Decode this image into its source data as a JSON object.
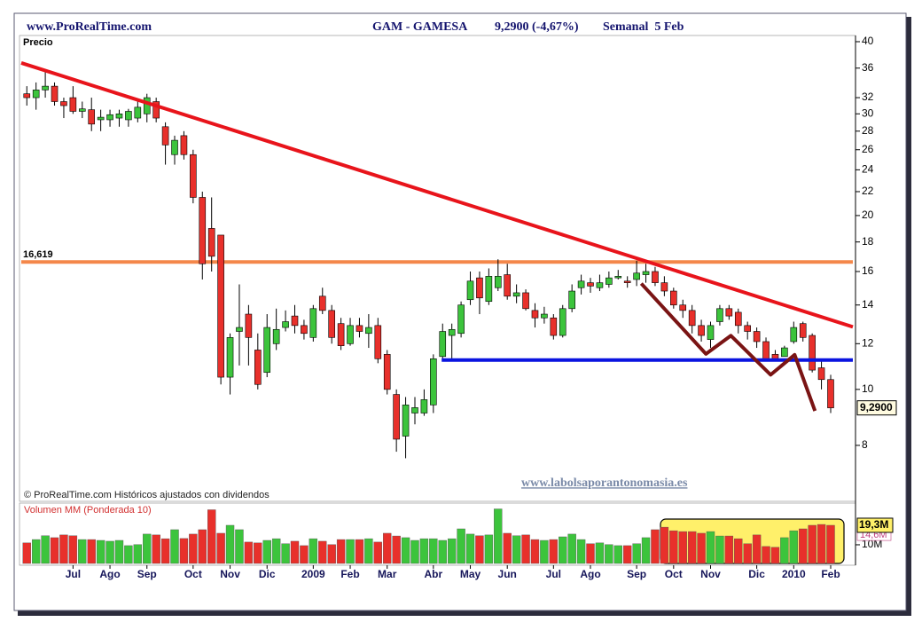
{
  "chart_data": {
    "type": "candlestick",
    "site": "www.ProRealTime.com",
    "ticker": "GAM - GAMESA",
    "quote": "9,2900 (-4,67%)",
    "period": "Semanal  5 Feb",
    "y_title": "Precio",
    "copyright": "© ProRealTime.com Históricos ajustados con dividendos",
    "watermark": "www.labolsaporantonomasia.es",
    "log_scale": true,
    "up_color": "#3cc43c",
    "down_color": "#e8302b",
    "xlim": [
      -0.6,
      89.4
    ],
    "ylim": [
      6.4,
      41
    ],
    "yticks": [
      8,
      10,
      12,
      14,
      16,
      18,
      20,
      22,
      24,
      26,
      28,
      30,
      32,
      36,
      40
    ],
    "categories": [
      null,
      null,
      null,
      null,
      null,
      "Jul",
      null,
      null,
      null,
      "Ago",
      null,
      null,
      null,
      "Sep",
      null,
      null,
      null,
      null,
      "Oct",
      null,
      null,
      null,
      "Nov",
      null,
      null,
      null,
      "Dic",
      null,
      null,
      null,
      null,
      "2009",
      null,
      null,
      null,
      "Feb",
      null,
      null,
      null,
      "Mar",
      null,
      null,
      null,
      null,
      "Abr",
      null,
      null,
      null,
      "May",
      null,
      null,
      null,
      "Jun",
      null,
      null,
      null,
      null,
      "Jul",
      null,
      null,
      null,
      "Ago",
      null,
      null,
      null,
      null,
      "Sep",
      null,
      null,
      null,
      "Oct",
      null,
      null,
      null,
      "Nov",
      null,
      null,
      null,
      null,
      "Dic",
      null,
      null,
      null,
      "2010",
      null,
      null,
      null,
      "Feb"
    ],
    "open": [
      32.5,
      32,
      33,
      33.5,
      31.5,
      32,
      30.3,
      30.5,
      29.3,
      29.3,
      29.5,
      29.3,
      29.5,
      30,
      31.5,
      28.5,
      25.5,
      27.5,
      25.5,
      21.5,
      19,
      18.5,
      10.5,
      12.6,
      13.5,
      11.7,
      10.7,
      12,
      12.8,
      13.4,
      12.9,
      12.3,
      14.5,
      13.7,
      13,
      12,
      12.9,
      12.5,
      12.9,
      11.5,
      9.8,
      8.3,
      9.1,
      9.1,
      9.4,
      11.4,
      12.4,
      12.5,
      14.3,
      15.6,
      14.2,
      15,
      15.8,
      14.5,
      14.7,
      13.7,
      13.3,
      13.3,
      12.4,
      13.8,
      15,
      15.3,
      15,
      15.2,
      15.6,
      15.4,
      15.5,
      15.8,
      16,
      15.3,
      14.8,
      14,
      13.7,
      12.9,
      12.2,
      13.1,
      13.8,
      13.6,
      12.9,
      12.6,
      12.1,
      11.5,
      11.4,
      12.1,
      13,
      12.4,
      10.9,
      10.4
    ],
    "high": [
      33.5,
      34,
      35.5,
      34,
      32,
      33.5,
      31.5,
      32,
      30.5,
      30.5,
      30.5,
      30.6,
      31.5,
      32.5,
      32,
      29,
      27.5,
      28,
      26,
      22,
      21.5,
      18.5,
      12.5,
      15.2,
      14,
      12.5,
      13.5,
      13.8,
      13.7,
      14,
      13.2,
      14,
      15,
      14,
      13.3,
      13.3,
      13.3,
      13.5,
      13.3,
      11.7,
      10,
      9.7,
      9.7,
      10,
      11.5,
      13,
      13,
      14.2,
      16,
      16,
      16.2,
      16.8,
      16.5,
      15.2,
      14.9,
      14.1,
      13.9,
      13.5,
      14,
      15.2,
      15.8,
      15.6,
      15.8,
      16,
      16.1,
      15.7,
      16.7,
      16.5,
      16.3,
      15.7,
      15,
      14.3,
      14,
      13.2,
      13.1,
      14,
      14,
      13.8,
      13.1,
      12.8,
      12.3,
      11.7,
      11.9,
      13.1,
      13.1,
      12.5,
      11.2,
      10.6
    ],
    "low": [
      31,
      30.5,
      32,
      31,
      29.5,
      30,
      29.5,
      28,
      28,
      28.5,
      28.5,
      28.5,
      29,
      29,
      29,
      24.5,
      24.5,
      25,
      21,
      15.5,
      16,
      10.2,
      9.8,
      11,
      11,
      10,
      10.5,
      11.7,
      12.6,
      12.5,
      12.2,
      12.1,
      13.5,
      12,
      11.7,
      11.9,
      12.3,
      11.8,
      11.1,
      9.8,
      7.8,
      7.6,
      8.7,
      9,
      9.1,
      11.2,
      11.3,
      12.3,
      14,
      13.5,
      14,
      14.8,
      14.3,
      14.1,
      13.7,
      12.8,
      13,
      12.2,
      12.3,
      13.6,
      14.6,
      14.7,
      14.8,
      15,
      15.5,
      15,
      15.1,
      15.3,
      15.1,
      14.5,
      13.8,
      13.3,
      12.5,
      12.1,
      11.8,
      12.9,
      13.2,
      12.5,
      12.2,
      11.8,
      11.2,
      11.2,
      11.4,
      12,
      12.1,
      10.7,
      10,
      9.1
    ],
    "close": [
      32,
      33,
      33.5,
      31.5,
      31,
      30.3,
      30.6,
      28.8,
      29.6,
      29.9,
      30,
      30.3,
      30.8,
      32,
      29.5,
      26.5,
      27,
      25.5,
      21.5,
      16.5,
      17,
      10.5,
      12.3,
      12.8,
      12.3,
      10.2,
      12.8,
      12.7,
      13.1,
      12.9,
      12.5,
      13.8,
      13.7,
      12.3,
      11.9,
      12.9,
      12.6,
      12.8,
      11.3,
      10,
      8.2,
      9.4,
      9.3,
      9.6,
      11.3,
      12.6,
      12.7,
      14,
      15.4,
      14.4,
      15.7,
      15.7,
      14.5,
      14.7,
      13.8,
      13.3,
      13.5,
      12.4,
      13.8,
      14.8,
      15.4,
      15.1,
      15.3,
      15.6,
      15.7,
      15.3,
      15.9,
      16,
      15.3,
      14.8,
      14,
      13.7,
      12.9,
      12.4,
      12.9,
      13.8,
      13.4,
      12.9,
      12.6,
      12.1,
      11.3,
      11.3,
      11.8,
      12.8,
      12.3,
      10.8,
      10.4,
      9.29
    ],
    "last_price": {
      "value": 9.29,
      "label": "9,2900"
    },
    "hline": {
      "value": 16.619,
      "label": "16,619",
      "color": "#f4874a"
    },
    "lines": [
      {
        "color": "#e8141b",
        "points": [
          [
            -0.6,
            36.75
          ],
          [
            89.4,
            12.83
          ]
        ]
      },
      {
        "color": "#0a14e0",
        "points": [
          [
            44.9,
            11.24
          ],
          [
            89.4,
            11.24
          ]
        ]
      },
      {
        "color": "#7a1414",
        "points": [
          [
            66.5,
            15.25
          ],
          [
            73.5,
            11.52
          ],
          [
            76.2,
            12.39
          ],
          [
            80.5,
            10.6
          ],
          [
            83.1,
            11.48
          ],
          [
            85.3,
            9.18
          ]
        ]
      }
    ],
    "volume": {
      "title": "Volumen MM (Ponderada 10)",
      "ylim": [
        1.1,
        28.6
      ],
      "yticks": [
        {
          "value": 10,
          "label": "10M"
        }
      ],
      "values": [
        10.9,
        12.5,
        14.3,
        13.4,
        14.7,
        14.3,
        12.5,
        12.5,
        12.1,
        11.7,
        12.1,
        9.6,
        10.1,
        15.1,
        14.7,
        12.9,
        17.2,
        13,
        15.1,
        17.2,
        26.7,
        15.5,
        19.3,
        17.2,
        11.3,
        10.9,
        12.1,
        12.9,
        10.5,
        11.7,
        9.6,
        12.9,
        11.7,
        10.1,
        12.5,
        12.5,
        12.5,
        12.9,
        11.3,
        15.5,
        14.2,
        13.4,
        12.1,
        12.9,
        12.9,
        12.1,
        12.9,
        17.6,
        15.1,
        14.3,
        14.7,
        27.1,
        15.5,
        14.3,
        14.7,
        12.5,
        12.1,
        12.5,
        13.8,
        15.1,
        12.5,
        10.5,
        10.9,
        10.1,
        9.6,
        9.6,
        10.5,
        13.4,
        17.2,
        18.4,
        16.7,
        16.3,
        16.3,
        15.5,
        16.3,
        14.2,
        14.2,
        12.9,
        10.5,
        14.7,
        9.2,
        8.8,
        13.4,
        16.7,
        17.6,
        19.3,
        19.7,
        19.3
      ],
      "last_label": {
        "value": 19.3,
        "label": "19,3M"
      },
      "ma_label": {
        "value": 14.6,
        "label": "14,6M"
      }
    }
  }
}
